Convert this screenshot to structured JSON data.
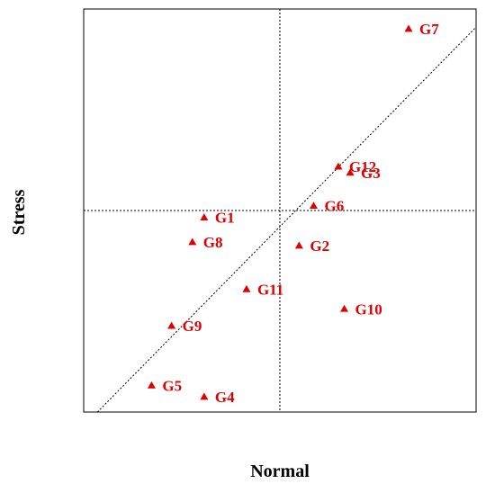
{
  "chart_data": {
    "type": "scatter",
    "xlabel": "Normal",
    "ylabel": "Stress",
    "xlim": [
      0,
      10
    ],
    "ylim": [
      0,
      10
    ],
    "grid": false,
    "reference_lines": {
      "vertical_x": 5,
      "horizontal_y": 5,
      "diagonal": "y = x"
    },
    "marker": "triangle",
    "marker_color": "#e00000",
    "points": [
      {
        "label": "G1",
        "x": 3.07,
        "y": 4.83
      },
      {
        "label": "G2",
        "x": 5.49,
        "y": 4.13
      },
      {
        "label": "G3",
        "x": 6.79,
        "y": 5.94
      },
      {
        "label": "G4",
        "x": 3.07,
        "y": 0.38
      },
      {
        "label": "G5",
        "x": 1.73,
        "y": 0.66
      },
      {
        "label": "G6",
        "x": 5.86,
        "y": 5.12
      },
      {
        "label": "G7",
        "x": 8.28,
        "y": 9.51
      },
      {
        "label": "G8",
        "x": 2.77,
        "y": 4.22
      },
      {
        "label": "G9",
        "x": 2.24,
        "y": 2.14
      },
      {
        "label": "G10",
        "x": 6.64,
        "y": 2.56
      },
      {
        "label": "G11",
        "x": 4.15,
        "y": 3.05
      },
      {
        "label": "G12",
        "x": 6.49,
        "y": 6.09
      }
    ]
  }
}
